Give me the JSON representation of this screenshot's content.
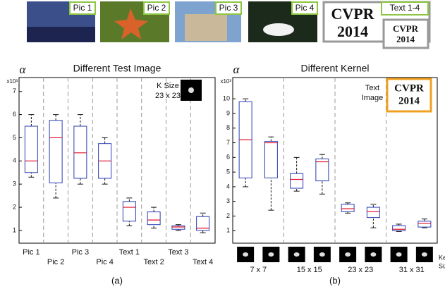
{
  "strip": {
    "labels": [
      "Pic 1",
      "Pic 2",
      "Pic 3",
      "Pic 4",
      "Text 1-4"
    ],
    "big_text": [
      "CVPR",
      "2014"
    ],
    "small_text": [
      "CVPR",
      "2014"
    ]
  },
  "chart_data": [
    {
      "type": "box",
      "title": "Different Test Image",
      "y_label": "α",
      "y_multiplier": "x10³",
      "caption": "(a)",
      "annotations": [
        "K Size",
        "23 x 23"
      ],
      "categories": [
        "Pic 1",
        "Pic 2",
        "Pic 3",
        "Pic 4",
        "Text 1",
        "Text 2",
        "Text 3",
        "Text 4"
      ],
      "boxes": [
        {
          "low": 3.3,
          "q1": 3.5,
          "median": 4.0,
          "q3": 5.5,
          "high": 6.0
        },
        {
          "low": 2.4,
          "q1": 3.05,
          "median": 5.0,
          "q3": 5.75,
          "high": 6.0
        },
        {
          "low": 3.0,
          "q1": 3.25,
          "median": 4.35,
          "q3": 5.5,
          "high": 6.0
        },
        {
          "low": 3.0,
          "q1": 3.25,
          "median": 4.0,
          "q3": 4.75,
          "high": 5.0
        },
        {
          "low": 1.2,
          "q1": 1.4,
          "median": 2.0,
          "q3": 2.25,
          "high": 2.4
        },
        {
          "low": 1.1,
          "q1": 1.25,
          "median": 1.45,
          "q3": 1.8,
          "high": 2.0
        },
        {
          "low": 1.0,
          "q1": 1.05,
          "median": 1.15,
          "q3": 1.2,
          "high": 1.25
        },
        {
          "low": 0.9,
          "q1": 1.0,
          "median": 1.1,
          "q3": 1.6,
          "high": 1.75
        }
      ],
      "box_color": "#2b3fb5",
      "median_color": "#e0102a",
      "ylim": [
        0.45,
        7.6
      ],
      "yticks": [
        1,
        2,
        3,
        4,
        5,
        6,
        7
      ]
    },
    {
      "type": "box",
      "title": "Different Kernel",
      "y_label": "α",
      "y_multiplier": "x10³",
      "caption": "(b)",
      "annotations": [
        "Text",
        "Image",
        "CVPR",
        "2014",
        "Kernel",
        "Size"
      ],
      "categories": [
        "7 x 7",
        "15 x 15",
        "23 x 23",
        "31 x 31"
      ],
      "boxes": [
        {
          "low": 4.0,
          "q1": 4.6,
          "median": 7.2,
          "q3": 9.8,
          "high": 10.0
        },
        {
          "low": 2.4,
          "q1": 4.6,
          "median": 7.0,
          "q3": 7.1,
          "high": 7.4
        },
        {
          "low": 3.7,
          "q1": 3.9,
          "median": 4.5,
          "q3": 4.9,
          "high": 6.0
        },
        {
          "low": 3.5,
          "q1": 4.4,
          "median": 5.7,
          "q3": 5.9,
          "high": 6.2
        },
        {
          "low": 2.2,
          "q1": 2.3,
          "median": 2.5,
          "q3": 2.8,
          "high": 2.9
        },
        {
          "low": 1.2,
          "q1": 1.9,
          "median": 2.3,
          "q3": 2.6,
          "high": 2.8
        },
        {
          "low": 0.95,
          "q1": 1.0,
          "median": 1.1,
          "q3": 1.35,
          "high": 1.45
        },
        {
          "low": 1.2,
          "q1": 1.25,
          "median": 1.5,
          "q3": 1.65,
          "high": 1.8
        }
      ],
      "box_color": "#2b3fb5",
      "median_color": "#e0102a",
      "ylim": [
        0.15,
        11.45
      ],
      "yticks": [
        1,
        2,
        3,
        4,
        5,
        6,
        7,
        8,
        9,
        10
      ]
    }
  ]
}
